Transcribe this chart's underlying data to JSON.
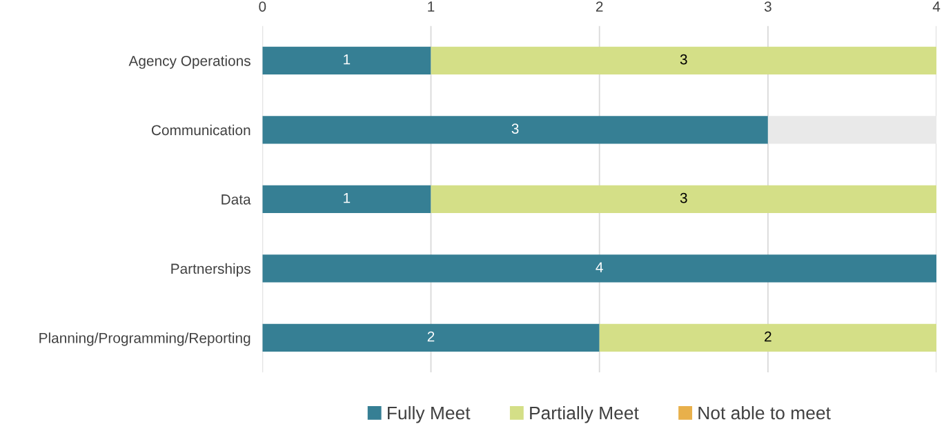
{
  "chart_data": {
    "type": "bar",
    "orientation": "horizontal",
    "stacked": true,
    "categories": [
      "Agency Operations",
      "Communication",
      "Data",
      "Partnerships",
      "Planning/Programming/Reporting"
    ],
    "series": [
      {
        "name": "Fully Meet",
        "color": "#367f94",
        "values": [
          1,
          3,
          1,
          4,
          2
        ],
        "value_labels": [
          "1",
          "3",
          "1",
          "4",
          "2"
        ]
      },
      {
        "name": "Partially Meet",
        "color": "#d4df87",
        "values": [
          3,
          null,
          3,
          null,
          2
        ],
        "value_labels": [
          "3",
          null,
          "3",
          null,
          "2"
        ]
      },
      {
        "name": "Not able to meet",
        "color": "#e8b04b",
        "values": [
          null,
          null,
          null,
          null,
          null
        ]
      },
      {
        "color": "#e9e9e9",
        "values": [
          null,
          1,
          null,
          null,
          null
        ]
      }
    ],
    "xlim": [
      0,
      4
    ],
    "xticks": [
      0,
      1,
      2,
      3,
      4
    ],
    "grid": "x",
    "legend": "bottom"
  }
}
